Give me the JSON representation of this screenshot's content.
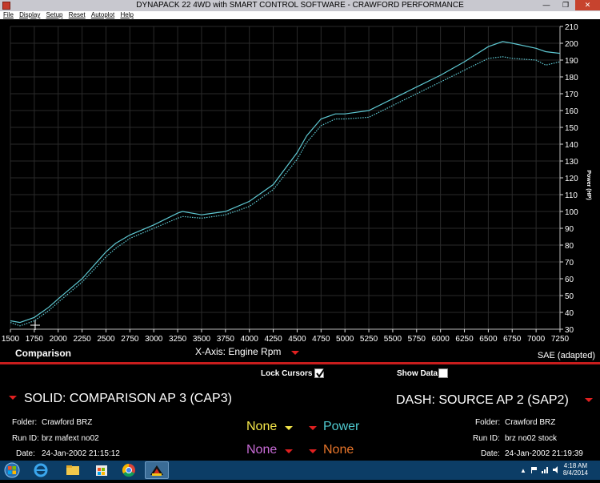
{
  "window": {
    "title": "DYNAPACK 22 4WD with SMART CONTROL SOFTWARE - CRAWFORD PERFORMANCE",
    "minimize": "—",
    "maximize": "❐",
    "close": "✕"
  },
  "menu": [
    "File",
    "Display",
    "Setup",
    "Reset",
    "Autoplot",
    "Help"
  ],
  "plot": {
    "comparison_label": "Comparison",
    "xaxis_label": "X-Axis: Engine Rpm",
    "correction": "SAE (adapted)"
  },
  "chart_data": {
    "type": "line",
    "xlabel": "",
    "ylabel": "Power (HP)",
    "xlim": [
      1500,
      7250
    ],
    "ylim": [
      30,
      210
    ],
    "xticks": [
      1500,
      1750,
      2000,
      2250,
      2500,
      2750,
      3000,
      3250,
      3500,
      3750,
      4000,
      4250,
      4500,
      4750,
      5000,
      5250,
      5500,
      5750,
      6000,
      6250,
      6500,
      6750,
      7000,
      7250
    ],
    "yticks": [
      30,
      40,
      50,
      60,
      70,
      80,
      90,
      100,
      110,
      120,
      130,
      140,
      150,
      160,
      170,
      180,
      190,
      200,
      210
    ],
    "grid": true,
    "series": [
      {
        "style": "solid",
        "color": "#5ec8d2",
        "x": [
          1500,
          1600,
          1750,
          1900,
          2000,
          2250,
          2500,
          2600,
          2750,
          3000,
          3250,
          3300,
          3500,
          3750,
          4000,
          4250,
          4500,
          4600,
          4750,
          4900,
          5000,
          5250,
          5500,
          5750,
          6000,
          6250,
          6500,
          6650,
          6750,
          7000,
          7100,
          7250
        ],
        "y": [
          35,
          34,
          37,
          43,
          48,
          60,
          76,
          81,
          86,
          92,
          99,
          100,
          98,
          100,
          106,
          116,
          135,
          145,
          155,
          158,
          158,
          160,
          167,
          174,
          181,
          189,
          198,
          201,
          200,
          197,
          195,
          194
        ]
      },
      {
        "style": "dashed",
        "color": "#5ec8d2",
        "x": [
          1500,
          1600,
          1750,
          1900,
          2000,
          2250,
          2500,
          2600,
          2750,
          3000,
          3250,
          3300,
          3500,
          3750,
          4000,
          4250,
          4500,
          4600,
          4750,
          4900,
          5000,
          5250,
          5500,
          5750,
          6000,
          6250,
          6500,
          6650,
          6750,
          7000,
          7100,
          7250
        ],
        "y": [
          34,
          32,
          35,
          41,
          46,
          58,
          73,
          78,
          84,
          90,
          96,
          97,
          96,
          98,
          103,
          113,
          131,
          141,
          151,
          155,
          155,
          156,
          163,
          170,
          177,
          184,
          191,
          192,
          191,
          190,
          187,
          189
        ]
      }
    ]
  },
  "controls": {
    "lock_cursors_label": "Lock Cursors",
    "lock_cursors_checked": true,
    "show_data_label": "Show Data",
    "show_data_checked": false
  },
  "solid": {
    "title": "SOLID: COMPARISON AP 3 (CAP3)",
    "folder_label": "Folder:",
    "folder": "Crawford BRZ",
    "runid_label": "Run ID:",
    "runid": "brz mafext no02",
    "date_label": "Date:",
    "date": "24-Jan-2002  21:15:12"
  },
  "dash": {
    "title": "DASH: SOURCE AP 2 (SAP2)",
    "folder_label": "Folder:",
    "folder": "Crawford BRZ",
    "runid_label": "Run ID:",
    "runid": "brz no02 stock",
    "date_label": "Date:",
    "date": "24-Jan-2002  21:19:39"
  },
  "selectors": [
    {
      "label": "None",
      "color": "#f4e64a"
    },
    {
      "label": "Power",
      "color": "#4fc9cf"
    },
    {
      "label": "None",
      "color": "#c86bd6"
    },
    {
      "label": "None",
      "color": "#e8752a"
    }
  ],
  "taskbar": {
    "time": "4:18 AM",
    "date": "8/4/2014",
    "overflow": "▲"
  }
}
